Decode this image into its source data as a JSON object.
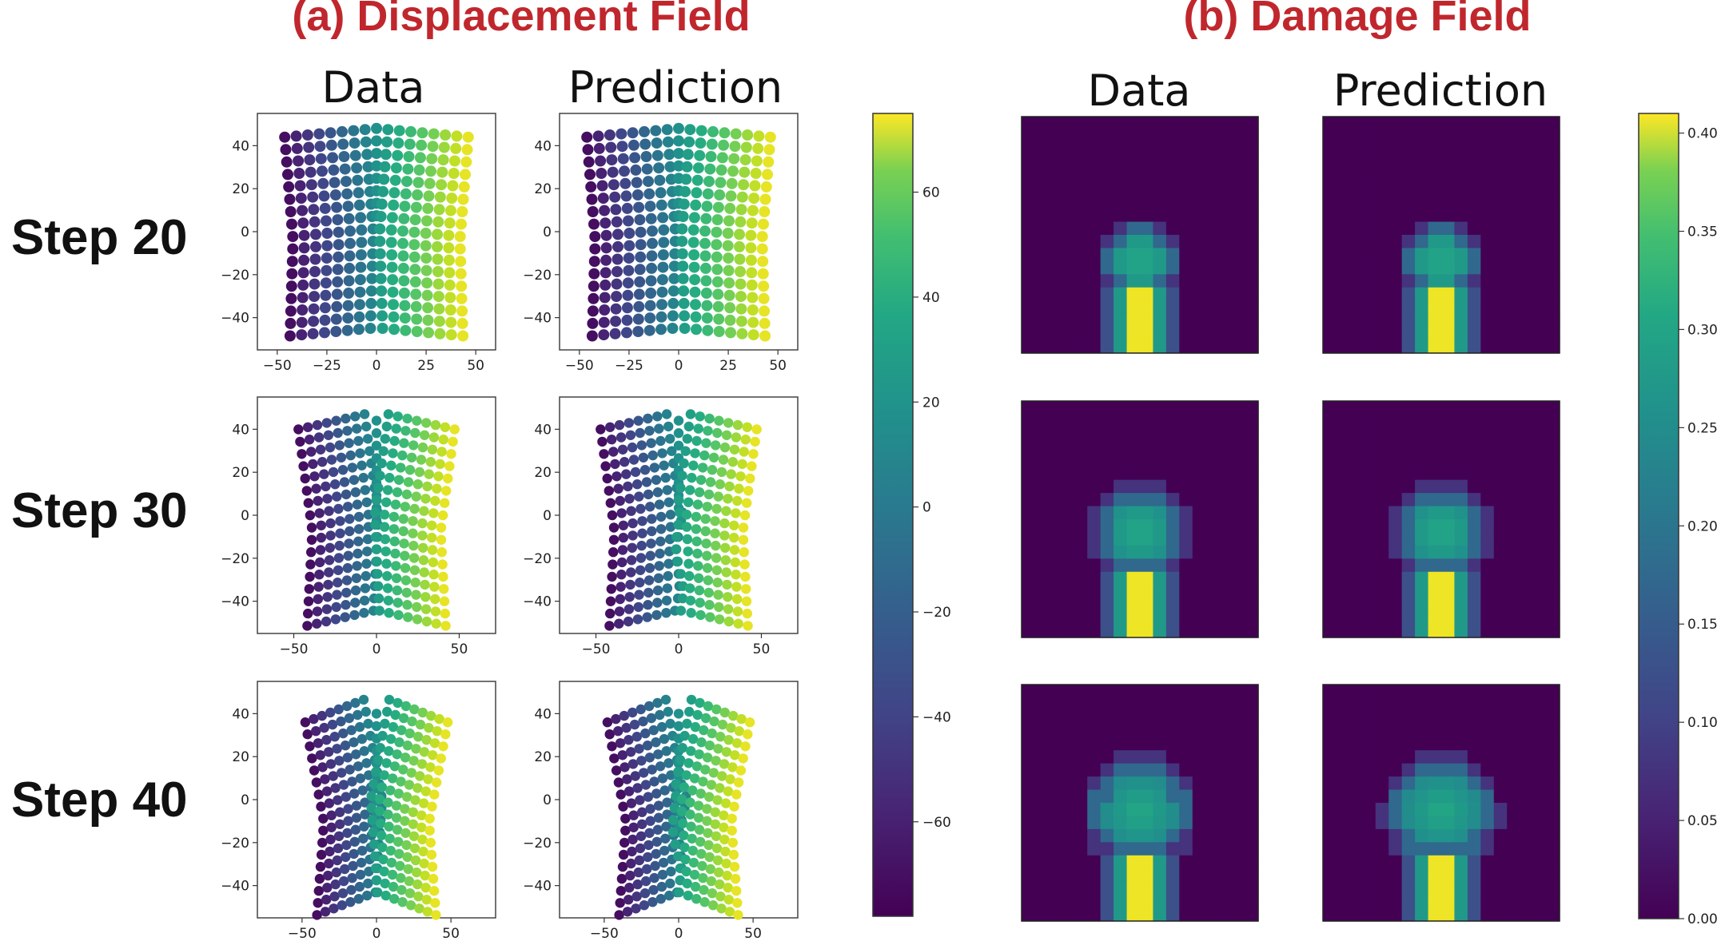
{
  "titles": {
    "displacement": "(a) Displacement Field",
    "damage": "(b) Damage Field"
  },
  "columns": {
    "displacement": [
      "Data",
      "Prediction"
    ],
    "damage": [
      "Data",
      "Prediction"
    ]
  },
  "rows": [
    "Step 20",
    "Step 30",
    "Step 40"
  ],
  "colors": {
    "title_red": "#c0272d",
    "viridis_low": "#440154",
    "viridis_mid": "#21918c",
    "viridis_high": "#fde725"
  },
  "chart_data": [
    {
      "type": "scatter",
      "name": "displacement-field",
      "xlim_by_step": [
        [
          -60,
          60
        ],
        [
          -72,
          72
        ],
        [
          -80,
          80
        ]
      ],
      "ylim": [
        -55,
        55
      ],
      "xticks_by_step": [
        [
          "−50",
          "−25",
          "0",
          "25",
          "50"
        ],
        [
          "−50",
          "0",
          "50"
        ],
        [
          "−50",
          "0",
          "50"
        ]
      ],
      "xtick_values_by_step": [
        [
          -50,
          -25,
          0,
          25,
          50
        ],
        [
          -50,
          0,
          50
        ],
        [
          -50,
          0,
          50
        ]
      ],
      "yticks": [
        "−40",
        "−20",
        "0",
        "20",
        "40"
      ],
      "ytick_values": [
        -40,
        -20,
        0,
        20,
        40
      ],
      "grid": {
        "columns": 17,
        "rows": 17,
        "spacing": 5.8
      },
      "bend_deg_by_step": [
        5,
        10,
        15
      ],
      "notch": {
        "half_width": 1.8,
        "top_y": 6,
        "bottom_y": -48
      },
      "grid_lines": false
    },
    {
      "type": "heatmap",
      "name": "damage-field",
      "grid_cells": 18,
      "colorbar": {
        "ticks": [
          "0.00",
          "0.05",
          "0.10",
          "0.15",
          "0.20",
          "0.25",
          "0.30",
          "0.35",
          "0.40"
        ],
        "values": [
          0,
          0.05,
          0.1,
          0.15,
          0.2,
          0.25,
          0.3,
          0.35,
          0.4
        ],
        "min": 0,
        "max": 0.41
      },
      "blob_radius_by_step": [
        1.6,
        2.3,
        2.7
      ],
      "blob_center_row_by_step": [
        10.5,
        9.5,
        9.2
      ],
      "grid_lines": false
    },
    {
      "type": "colorbar",
      "name": "displacement-colorbar",
      "ticks": [
        "60",
        "40",
        "20",
        "0",
        "−20",
        "−40",
        "−60"
      ],
      "values": [
        60,
        40,
        20,
        0,
        -20,
        -40,
        -60
      ],
      "min": -78,
      "max": 75
    }
  ]
}
